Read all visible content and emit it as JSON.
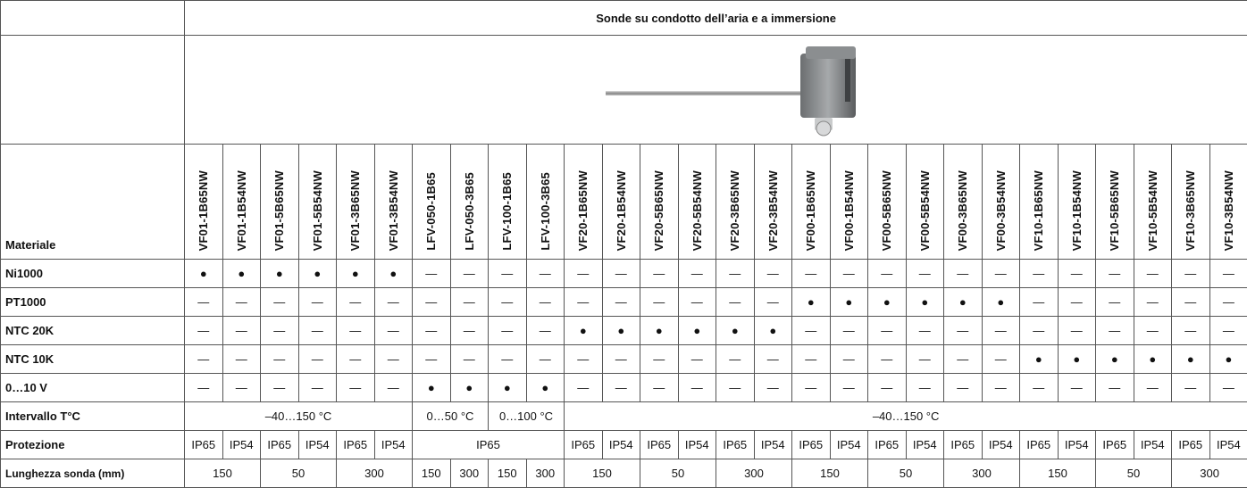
{
  "table": {
    "title": "Sonde su condotto dell’aria e a immersione",
    "corner": "Materiale",
    "codes": [
      "VF01-1B65NW",
      "VF01-1B54NW",
      "VF01-5B65NW",
      "VF01-5B54NW",
      "VF01-3B65NW",
      "VF01-3B54NW",
      "LFV-050-1B65",
      "LFV-050-3B65",
      "LFV-100-1B65",
      "LFV-100-3B65",
      "VF20-1B65NW",
      "VF20-1B54NW",
      "VF20-5B65NW",
      "VF20-5B54NW",
      "VF20-3B65NW",
      "VF20-3B54NW",
      "VF00-1B65NW",
      "VF00-1B54NW",
      "VF00-5B65NW",
      "VF00-5B54NW",
      "VF00-3B65NW",
      "VF00-3B54NW",
      "VF10-1B65NW",
      "VF10-1B54NW",
      "VF10-5B65NW",
      "VF10-5B54NW",
      "VF10-3B65NW",
      "VF10-3B54NW"
    ],
    "rows": [
      {
        "label": "Ni1000",
        "cells": [
          "●",
          "●",
          "●",
          "●",
          "●",
          "●",
          "—",
          "—",
          "—",
          "—",
          "—",
          "—",
          "—",
          "—",
          "—",
          "—",
          "—",
          "—",
          "—",
          "—",
          "—",
          "—",
          "—",
          "—",
          "—",
          "—",
          "—",
          "—"
        ]
      },
      {
        "label": "PT1000",
        "cells": [
          "—",
          "—",
          "—",
          "—",
          "—",
          "—",
          "—",
          "—",
          "—",
          "—",
          "—",
          "—",
          "—",
          "—",
          "—",
          "—",
          "●",
          "●",
          "●",
          "●",
          "●",
          "●",
          "—",
          "—",
          "—",
          "—",
          "—",
          "—"
        ]
      },
      {
        "label": "NTC 20K",
        "cells": [
          "—",
          "—",
          "—",
          "—",
          "—",
          "—",
          "—",
          "—",
          "—",
          "—",
          "●",
          "●",
          "●",
          "●",
          "●",
          "●",
          "—",
          "—",
          "—",
          "—",
          "—",
          "—",
          "—",
          "—",
          "—",
          "—",
          "—",
          "—"
        ]
      },
      {
        "label": "NTC 10K",
        "cells": [
          "—",
          "—",
          "—",
          "—",
          "—",
          "—",
          "—",
          "—",
          "—",
          "—",
          "—",
          "—",
          "—",
          "—",
          "—",
          "—",
          "—",
          "—",
          "—",
          "—",
          "—",
          "—",
          "●",
          "●",
          "●",
          "●",
          "●",
          "●"
        ]
      },
      {
        "label": "0…10 V",
        "cells": [
          "—",
          "—",
          "—",
          "—",
          "—",
          "—",
          "●",
          "●",
          "●",
          "●",
          "—",
          "—",
          "—",
          "—",
          "—",
          "—",
          "—",
          "—",
          "—",
          "—",
          "—",
          "—",
          "—",
          "—",
          "—",
          "—",
          "—",
          "—"
        ]
      },
      {
        "label": "Intervallo T°C",
        "cells": [
          "–40…150 °C",
          "0…50 °C",
          "0…100 °C",
          "–40…150 °C"
        ]
      },
      {
        "label": "Protezione",
        "cells": [
          "IP65",
          "IP54",
          "IP65",
          "IP54",
          "IP65",
          "IP54",
          "IP65",
          "IP65",
          "IP54",
          "IP65",
          "IP54",
          "IP65",
          "IP54",
          "IP65",
          "IP54",
          "IP65",
          "IP54",
          "IP65",
          "IP54",
          "IP65",
          "IP54",
          "IP65",
          "IP54",
          "IP65",
          "IP54"
        ]
      },
      {
        "label": "Lunghezza sonda (mm)",
        "cells": [
          "150",
          "50",
          "300",
          "150",
          "300",
          "150",
          "300",
          "150",
          "50",
          "300",
          "150",
          "50",
          "300",
          "150",
          "50",
          "300"
        ]
      }
    ]
  }
}
